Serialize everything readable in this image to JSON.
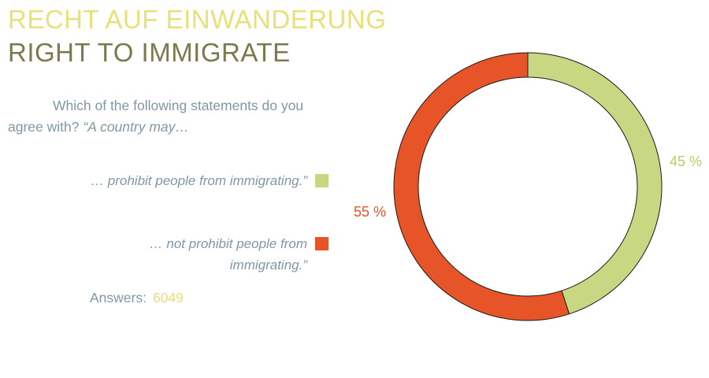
{
  "title_de": "RECHT AUF EINWANDERUNG",
  "title_en": "RIGHT TO IMMIGRATE",
  "question": {
    "text": "Which of the following statements do you agree with?",
    "italic": "“A country may…"
  },
  "answers": {
    "label": "Answers:",
    "count": "6049"
  },
  "colors": {
    "title_de": "#e8e07a",
    "title_en": "#7b7a4c",
    "text": "#7f98a6"
  },
  "chart_data": {
    "type": "pie",
    "variant": "donut",
    "slices": [
      {
        "label": "… prohibit people from immigrating.”",
        "value": 45,
        "value_label": "45 %",
        "color": "#c8d882"
      },
      {
        "label": "… not prohibit people from immigrating.”",
        "value": 55,
        "value_label": "55 %",
        "color": "#e75427"
      }
    ],
    "legend_position": "left"
  }
}
